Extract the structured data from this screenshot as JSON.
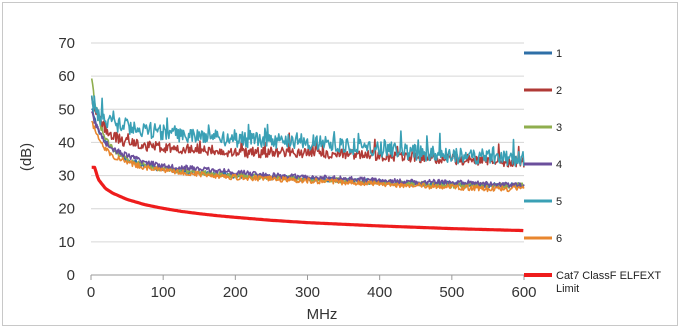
{
  "chart_data": {
    "type": "line",
    "xlabel": "MHz",
    "ylabel": "(dB)",
    "xlim": [
      0,
      600
    ],
    "ylim": [
      0,
      70
    ],
    "x_ticks": [
      "0",
      "100",
      "200",
      "300",
      "400",
      "500",
      "600"
    ],
    "y_ticks": [
      "0",
      "10",
      "20",
      "30",
      "40",
      "50",
      "60",
      "70"
    ],
    "grid": "horizontal",
    "legend_position": "right",
    "x": [
      1,
      5,
      10,
      20,
      30,
      50,
      75,
      100,
      125,
      150,
      175,
      200,
      250,
      300,
      350,
      400,
      450,
      500,
      550,
      600
    ],
    "series": [
      {
        "name": "1",
        "color": "#2e6fa7",
        "noise": 0.8,
        "values": [
          50,
          47,
          44,
          40,
          38,
          35,
          33,
          32,
          31.5,
          31,
          30.5,
          30,
          29.5,
          29,
          28.5,
          28,
          27.5,
          27.5,
          27,
          27
        ]
      },
      {
        "name": "2",
        "color": "#b03a36",
        "noise": 1.6,
        "values": [
          52,
          50,
          48,
          44,
          42,
          40,
          39,
          38.5,
          38,
          38,
          37.5,
          37,
          37,
          37,
          36.5,
          36,
          35.5,
          35,
          34.5,
          34
        ]
      },
      {
        "name": "3",
        "color": "#8fae4e",
        "noise": 0.8,
        "values": [
          59,
          52,
          47,
          41,
          38,
          35,
          33,
          32,
          31.5,
          31,
          30.5,
          30,
          29.5,
          29,
          28.5,
          28,
          27.5,
          27,
          27,
          27
        ]
      },
      {
        "name": "4",
        "color": "#6b4f9c",
        "noise": 0.8,
        "values": [
          49,
          46,
          44,
          40,
          38,
          36,
          34,
          33,
          32.5,
          32,
          31.5,
          31,
          30,
          29.5,
          29,
          28.5,
          28,
          28,
          27.5,
          27
        ]
      },
      {
        "name": "5",
        "color": "#3aa0b5",
        "noise": 2.4,
        "values": [
          53,
          50,
          48,
          46,
          45.5,
          45,
          44,
          43,
          42.5,
          42,
          41.5,
          41,
          40.5,
          40,
          39,
          38,
          37,
          36,
          35.5,
          35
        ]
      },
      {
        "name": "6",
        "color": "#e8862e",
        "noise": 0.8,
        "values": [
          46,
          44,
          42,
          38,
          36,
          34,
          32.5,
          31.5,
          31,
          30.5,
          30,
          29.5,
          29,
          28.5,
          28,
          27.5,
          27,
          26.5,
          26,
          26
        ]
      },
      {
        "name": "Cat7 ClassF ELFEXT Limit",
        "color": "#ee1c1c",
        "noise": 0,
        "values": [
          32.5,
          32.5,
          28.9,
          26.1,
          24.7,
          22.8,
          21.2,
          20.1,
          19.2,
          18.5,
          17.9,
          17.4,
          16.5,
          15.8,
          15.3,
          14.8,
          14.4,
          14.0,
          13.7,
          13.4
        ]
      }
    ]
  }
}
